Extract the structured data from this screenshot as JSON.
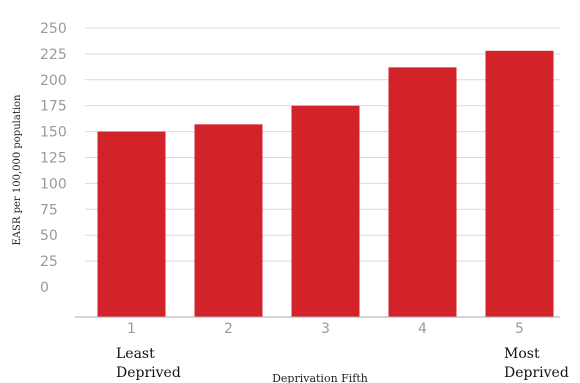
{
  "chart_data": {
    "type": "bar",
    "categories": [
      "1",
      "2",
      "3",
      "4",
      "5"
    ],
    "values": [
      150,
      157,
      175,
      212,
      228
    ],
    "ylabel": "EASR per 100,000 population",
    "xlabel": "Deprivation Fifth",
    "ylim": [
      0,
      250
    ],
    "yticks": [
      "0",
      "25",
      "50",
      "75",
      "100",
      "125",
      "150",
      "175",
      "200",
      "225",
      "250"
    ],
    "grid": true,
    "annotations": {
      "least": [
        "Least",
        "Deprived"
      ],
      "most": [
        "Most",
        "Deprived"
      ]
    },
    "colors": {
      "bar": "#d2232a",
      "grid": "#d9d9d9",
      "axis": "#aaaaaa",
      "tick_text": "#9a9a9a"
    }
  }
}
